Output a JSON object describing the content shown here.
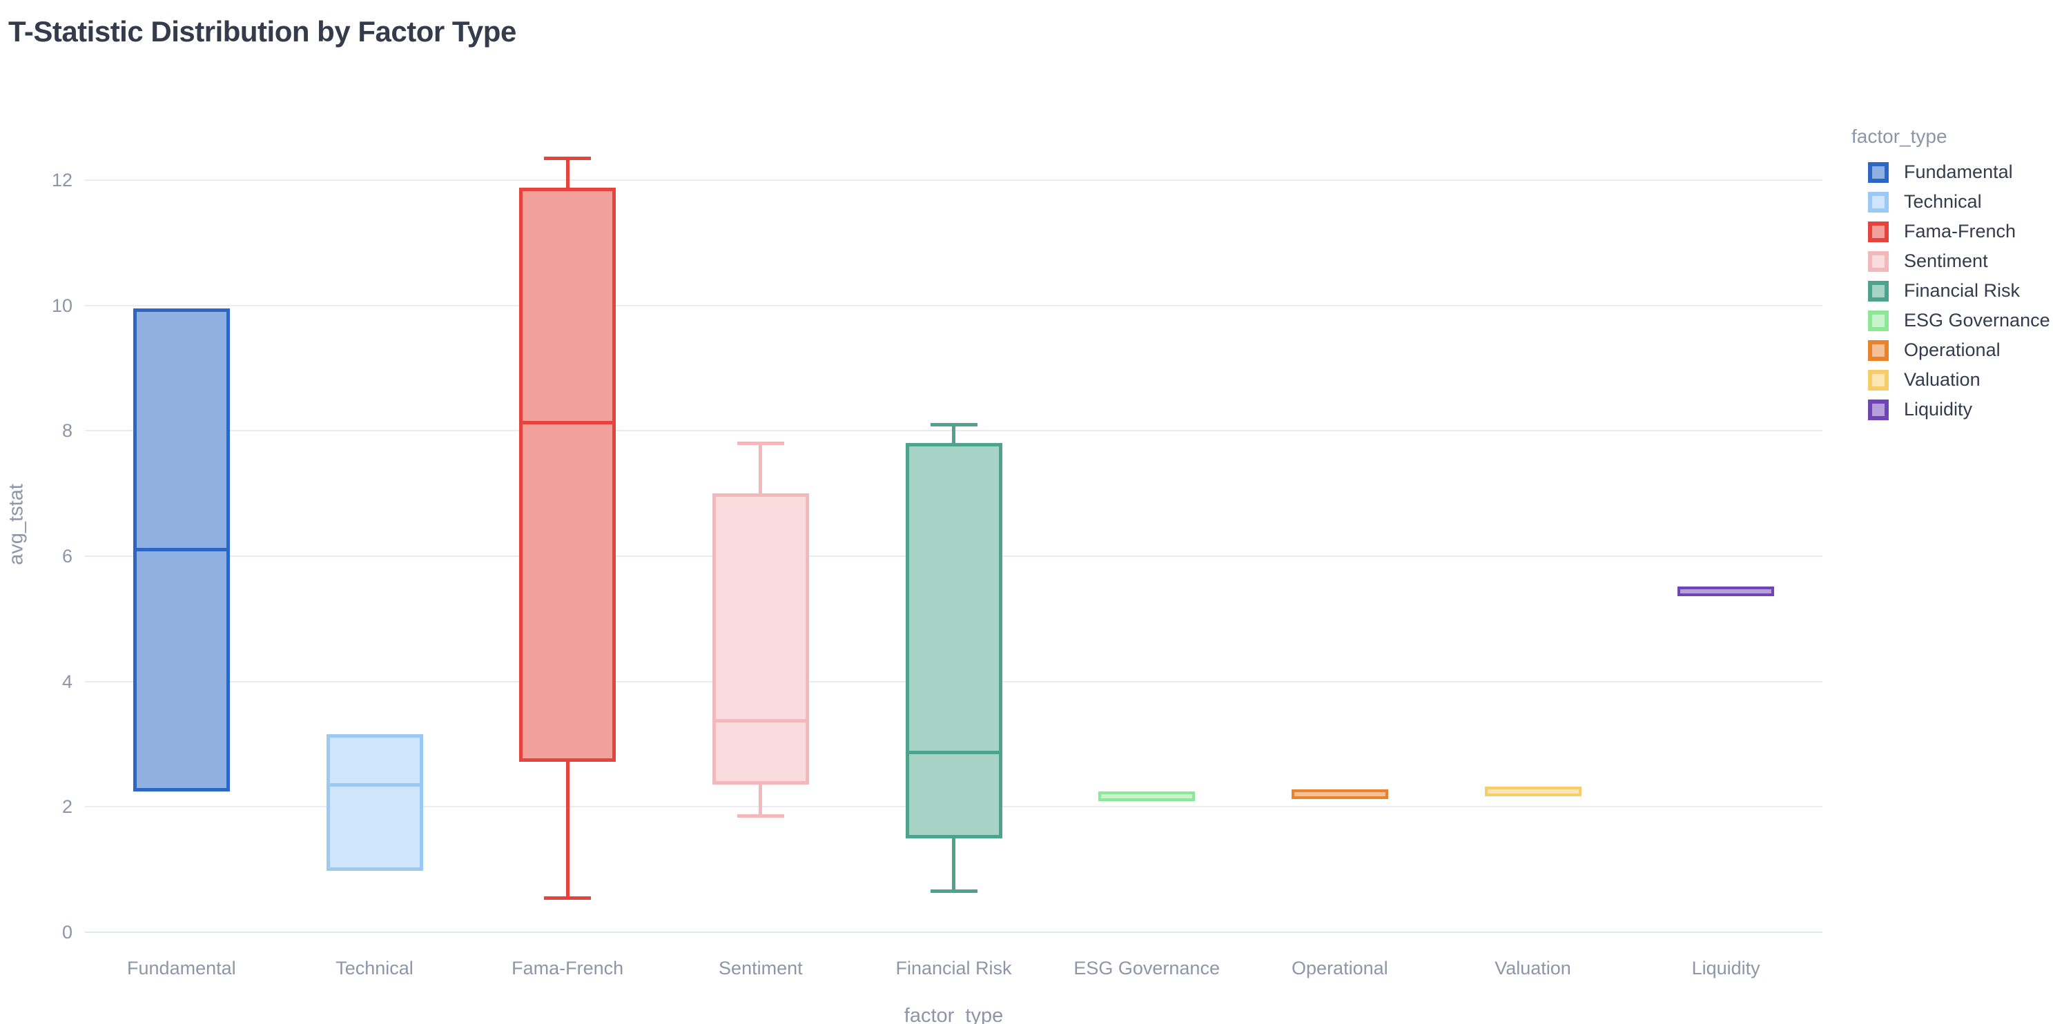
{
  "title": "T-Statistic Distribution by Factor Type",
  "chart_data": {
    "type": "box",
    "title": "T-Statistic Distribution by Factor Type",
    "xlabel": "factor_type",
    "ylabel": "avg_tstat",
    "ylim": [
      0,
      13
    ],
    "yticks": [
      0,
      2,
      4,
      6,
      8,
      10,
      12
    ],
    "grid": true,
    "legend_title": "factor_type",
    "legend_position": "right",
    "categories": [
      "Fundamental",
      "Technical",
      "Fama-French",
      "Sentiment",
      "Financial Risk",
      "ESG Governance",
      "Operational",
      "Valuation",
      "Liquidity"
    ],
    "series": [
      {
        "name": "Fundamental",
        "low": 2.25,
        "q1": 2.25,
        "median": 6.1,
        "q3": 9.95,
        "high": 9.95,
        "line_color": "#2c67c5",
        "fill_color": "#8fb0e0"
      },
      {
        "name": "Technical",
        "low": 0.98,
        "q1": 0.98,
        "median": 2.35,
        "q3": 3.16,
        "high": 3.16,
        "line_color": "#9ac9f5",
        "fill_color": "#cfe5fb"
      },
      {
        "name": "Fama-French",
        "low": 0.55,
        "q1": 2.72,
        "median": 8.13,
        "q3": 11.88,
        "high": 12.34,
        "line_color": "#e5433c",
        "fill_color": "#f2a09b"
      },
      {
        "name": "Sentiment",
        "low": 1.85,
        "q1": 2.36,
        "median": 3.37,
        "q3": 7.0,
        "high": 7.8,
        "line_color": "#f3b8bb",
        "fill_color": "#f9dcdd"
      },
      {
        "name": "Financial Risk",
        "low": 0.65,
        "q1": 1.5,
        "median": 2.87,
        "q3": 7.8,
        "high": 8.1,
        "line_color": "#4ea38d",
        "fill_color": "#a7d2c6"
      },
      {
        "name": "ESG Governance",
        "low": 2.17,
        "q1": 2.17,
        "median": 2.17,
        "q3": 2.17,
        "high": 2.17,
        "line_color": "#8ce896",
        "fill_color": "#c7f4cb"
      },
      {
        "name": "Operational",
        "low": 2.2,
        "q1": 2.2,
        "median": 2.2,
        "q3": 2.2,
        "high": 2.2,
        "line_color": "#e8822d",
        "fill_color": "#f4c196"
      },
      {
        "name": "Valuation",
        "low": 2.25,
        "q1": 2.25,
        "median": 2.25,
        "q3": 2.25,
        "high": 2.25,
        "line_color": "#f8cd69",
        "fill_color": "#fce6b4"
      },
      {
        "name": "Liquidity",
        "low": 5.44,
        "q1": 5.44,
        "median": 5.44,
        "q3": 5.44,
        "high": 5.44,
        "line_color": "#6f44b5",
        "fill_color": "#b79fdc"
      }
    ]
  }
}
